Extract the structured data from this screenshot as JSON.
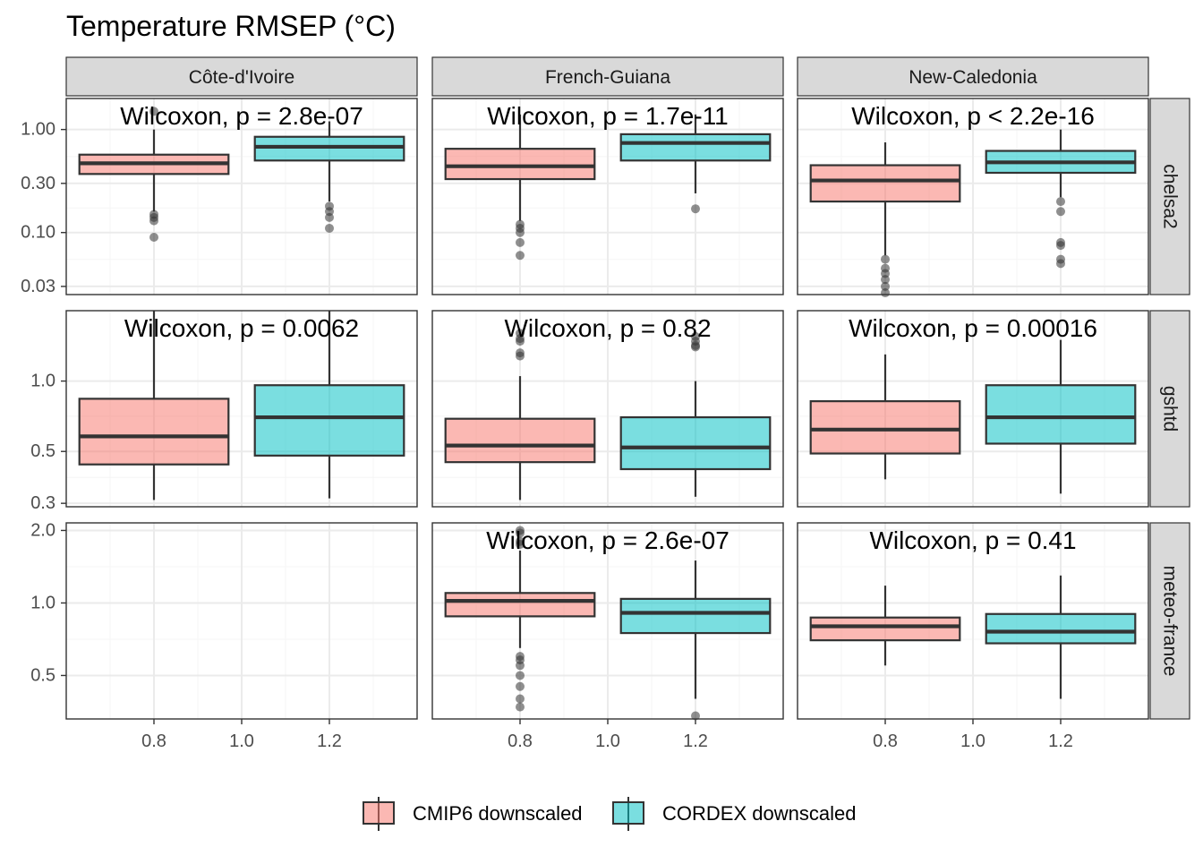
{
  "title": "Temperature RMSEP (°C)",
  "colors": {
    "cmip6": "#F8766D",
    "cordex": "#00BFC4",
    "strip": "#D9D9D9",
    "panel_border": "#333333",
    "grid_major": "#EBEBEB",
    "grid_minor": "#F5F5F5"
  },
  "chart_data": {
    "type": "boxplot",
    "title": "Temperature RMSEP (°C)",
    "columns": [
      "Côte-d'Ivoire",
      "French-Guiana",
      "New-Caledonia"
    ],
    "rows": [
      "chelsa2",
      "gshtd",
      "meteo-france"
    ],
    "x_ticks": [
      "0.8",
      "1.0",
      "1.2"
    ],
    "xlim": [
      0.6,
      1.4
    ],
    "scale_y": "log10",
    "y_axes": [
      {
        "row": "chelsa2",
        "ylim": [
          0.025,
          2.0
        ],
        "ticks": [
          1.0,
          0.3,
          0.1,
          0.03
        ],
        "tick_labels": [
          "1.00",
          "0.30",
          "0.10",
          "0.03"
        ]
      },
      {
        "row": "gshtd",
        "ylim": [
          0.29,
          2.0
        ],
        "ticks": [
          1.0,
          0.5,
          0.3
        ],
        "tick_labels": [
          "1.0",
          "0.5",
          "0.3"
        ]
      },
      {
        "row": "meteo-france",
        "ylim": [
          0.33,
          2.15
        ],
        "ticks": [
          2.0,
          1.0,
          0.5
        ],
        "tick_labels": [
          "2.0",
          "1.0",
          "0.5"
        ]
      }
    ],
    "legend": {
      "position": "bottom",
      "entries": [
        "CMIP6 downscaled",
        "CORDEX downscaled"
      ]
    },
    "panels": [
      {
        "row": "chelsa2",
        "col": "Côte-d'Ivoire",
        "label": "Wilcoxon, p = 2.8e-07",
        "boxes": [
          {
            "series": "CMIP6 downscaled",
            "x": 0.8,
            "q1": 0.37,
            "median": 0.47,
            "q3": 0.57,
            "whisker_low": 0.16,
            "whisker_high": 1.0,
            "outliers": [
              1.5,
              0.15,
              0.14,
              0.13,
              0.09
            ]
          },
          {
            "series": "CORDEX downscaled",
            "x": 1.2,
            "q1": 0.5,
            "median": 0.68,
            "q3": 0.85,
            "whisker_low": 0.2,
            "whisker_high": 1.2,
            "outliers": [
              0.18,
              0.16,
              0.14,
              0.11
            ]
          }
        ]
      },
      {
        "row": "chelsa2",
        "col": "French-Guiana",
        "label": "Wilcoxon, p = 1.7e-11",
        "boxes": [
          {
            "series": "CMIP6 downscaled",
            "x": 0.8,
            "q1": 0.33,
            "median": 0.44,
            "q3": 0.65,
            "whisker_low": 0.13,
            "whisker_high": 1.4,
            "outliers": [
              0.12,
              0.11,
              0.1,
              0.08,
              0.06
            ]
          },
          {
            "series": "CORDEX downscaled",
            "x": 1.2,
            "q1": 0.5,
            "median": 0.74,
            "q3": 0.9,
            "whisker_low": 0.24,
            "whisker_high": 1.4,
            "outliers": [
              0.17
            ]
          }
        ]
      },
      {
        "row": "chelsa2",
        "col": "New-Caledonia",
        "label": "Wilcoxon, p < 2.2e-16",
        "boxes": [
          {
            "series": "CMIP6 downscaled",
            "x": 0.8,
            "q1": 0.2,
            "median": 0.32,
            "q3": 0.45,
            "whisker_low": 0.06,
            "whisker_high": 0.75,
            "outliers": [
              0.055,
              0.045,
              0.04,
              0.035,
              0.03,
              0.026
            ]
          },
          {
            "series": "CORDEX downscaled",
            "x": 1.2,
            "q1": 0.38,
            "median": 0.48,
            "q3": 0.62,
            "whisker_low": 0.22,
            "whisker_high": 1.0,
            "outliers": [
              0.2,
              0.16,
              0.08,
              0.075,
              0.055,
              0.05
            ]
          }
        ]
      },
      {
        "row": "gshtd",
        "col": "Côte-d'Ivoire",
        "label": "Wilcoxon, p = 0.0062",
        "boxes": [
          {
            "series": "CMIP6 downscaled",
            "x": 0.8,
            "q1": 0.44,
            "median": 0.58,
            "q3": 0.84,
            "whisker_low": 0.31,
            "whisker_high": 2.0,
            "outliers": []
          },
          {
            "series": "CORDEX downscaled",
            "x": 1.2,
            "q1": 0.48,
            "median": 0.7,
            "q3": 0.96,
            "whisker_low": 0.315,
            "whisker_high": 2.0,
            "outliers": []
          }
        ]
      },
      {
        "row": "gshtd",
        "col": "French-Guiana",
        "label": "Wilcoxon, p = 0.82",
        "boxes": [
          {
            "series": "CMIP6 downscaled",
            "x": 0.8,
            "q1": 0.45,
            "median": 0.53,
            "q3": 0.69,
            "whisker_low": 0.31,
            "whisker_high": 1.05,
            "outliers": [
              1.6,
              1.52,
              1.48,
              1.32,
              1.28
            ]
          },
          {
            "series": "CORDEX downscaled",
            "x": 1.2,
            "q1": 0.42,
            "median": 0.52,
            "q3": 0.7,
            "whisker_low": 0.32,
            "whisker_high": 1.0,
            "outliers": [
              1.55,
              1.48,
              1.42,
              1.4
            ]
          }
        ]
      },
      {
        "row": "gshtd",
        "col": "New-Caledonia",
        "label": "Wilcoxon, p = 0.00016",
        "boxes": [
          {
            "series": "CMIP6 downscaled",
            "x": 0.8,
            "q1": 0.49,
            "median": 0.62,
            "q3": 0.82,
            "whisker_low": 0.38,
            "whisker_high": 1.3,
            "outliers": []
          },
          {
            "series": "CORDEX downscaled",
            "x": 1.2,
            "q1": 0.54,
            "median": 0.7,
            "q3": 0.96,
            "whisker_low": 0.33,
            "whisker_high": 1.5,
            "outliers": []
          }
        ]
      },
      {
        "row": "meteo-france",
        "col": "Côte-d'Ivoire",
        "label": "",
        "boxes": []
      },
      {
        "row": "meteo-france",
        "col": "French-Guiana",
        "label": "Wilcoxon, p = 2.6e-07",
        "boxes": [
          {
            "series": "CMIP6 downscaled",
            "x": 0.8,
            "q1": 0.88,
            "median": 1.02,
            "q3": 1.1,
            "whisker_low": 0.65,
            "whisker_high": 1.65,
            "outliers": [
              2.0,
              1.95,
              1.8,
              1.75,
              0.6,
              0.58,
              0.55,
              0.5,
              0.45,
              0.4,
              0.37
            ]
          },
          {
            "series": "CORDEX downscaled",
            "x": 1.2,
            "q1": 0.75,
            "median": 0.91,
            "q3": 1.04,
            "whisker_low": 0.4,
            "whisker_high": 1.5,
            "outliers": [
              0.34
            ]
          }
        ]
      },
      {
        "row": "meteo-france",
        "col": "New-Caledonia",
        "label": "Wilcoxon, p = 0.41",
        "boxes": [
          {
            "series": "CMIP6 downscaled",
            "x": 0.8,
            "q1": 0.7,
            "median": 0.8,
            "q3": 0.87,
            "whisker_low": 0.55,
            "whisker_high": 1.18,
            "outliers": []
          },
          {
            "series": "CORDEX downscaled",
            "x": 1.2,
            "q1": 0.68,
            "median": 0.76,
            "q3": 0.9,
            "whisker_low": 0.4,
            "whisker_high": 1.3,
            "outliers": []
          }
        ]
      }
    ]
  }
}
